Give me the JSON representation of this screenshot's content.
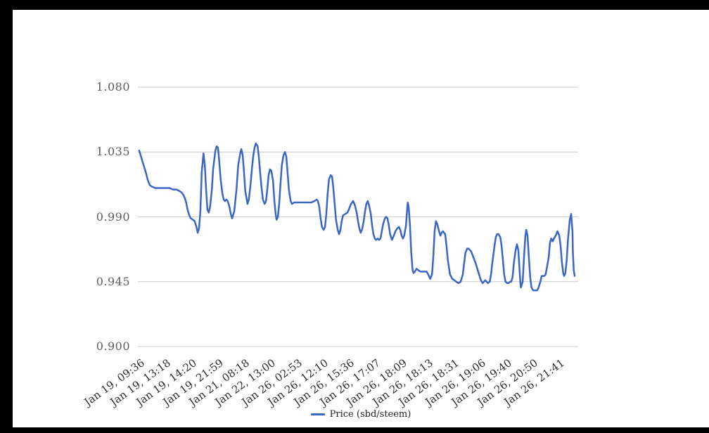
{
  "frame": {
    "color": "#000000"
  },
  "chart_data": {
    "type": "line",
    "title": "",
    "grid": true,
    "legend_position": "bottom",
    "x_axis": {
      "tick_labels": [
        "Jan 19, 09:36",
        "Jan 19, 13:18",
        "Jan 19, 14:20",
        "Jan 19, 21:59",
        "Jan 21, 08:18",
        "Jan 22, 13:00",
        "Jan 26, 02:53",
        "Jan 26, 12:10",
        "Jan 26, 15:36",
        "Jan 26, 17:07",
        "Jan 26, 18:09",
        "Jan 26, 18:13",
        "Jan 26, 18:31",
        "Jan 26, 19:06",
        "Jan 26, 19:40",
        "Jan 26, 20:50",
        "Jan 26, 21:41"
      ]
    },
    "y_axis": {
      "labels": [
        "1.080",
        "1.035",
        "0.990",
        "0.945",
        "0.900"
      ],
      "min": 0.9,
      "max": 1.08
    },
    "series": [
      {
        "name": "Price (sbd/steem)",
        "color": "#3a66c4",
        "points": [
          [
            0.003,
            1.036
          ],
          [
            0.008,
            1.031
          ],
          [
            0.013,
            1.026
          ],
          [
            0.018,
            1.021
          ],
          [
            0.022,
            1.016
          ],
          [
            0.027,
            1.012
          ],
          [
            0.032,
            1.011
          ],
          [
            0.04,
            1.01
          ],
          [
            0.048,
            1.01
          ],
          [
            0.056,
            1.01
          ],
          [
            0.064,
            1.01
          ],
          [
            0.072,
            1.01
          ],
          [
            0.08,
            1.009
          ],
          [
            0.088,
            1.009
          ],
          [
            0.094,
            1.008
          ],
          [
            0.099,
            1.007
          ],
          [
            0.104,
            1.005
          ],
          [
            0.109,
            1.001
          ],
          [
            0.113,
            0.995
          ],
          [
            0.117,
            0.991
          ],
          [
            0.12,
            0.989
          ],
          [
            0.125,
            0.988
          ],
          [
            0.129,
            0.987
          ],
          [
            0.133,
            0.983
          ],
          [
            0.136,
            0.979
          ],
          [
            0.139,
            0.982
          ],
          [
            0.142,
            0.994
          ],
          [
            0.145,
            1.021
          ],
          [
            0.149,
            1.034
          ],
          [
            0.152,
            1.026
          ],
          [
            0.155,
            1.009
          ],
          [
            0.158,
            0.995
          ],
          [
            0.161,
            0.993
          ],
          [
            0.164,
            0.997
          ],
          [
            0.168,
            1.009
          ],
          [
            0.171,
            1.023
          ],
          [
            0.176,
            1.036
          ],
          [
            0.179,
            1.039
          ],
          [
            0.182,
            1.038
          ],
          [
            0.185,
            1.028
          ],
          [
            0.188,
            1.016
          ],
          [
            0.192,
            1.006
          ],
          [
            0.195,
            1.002
          ],
          [
            0.198,
            1.001
          ],
          [
            0.201,
            1.002
          ],
          [
            0.204,
            1.001
          ],
          [
            0.208,
            0.997
          ],
          [
            0.211,
            0.992
          ],
          [
            0.214,
            0.989
          ],
          [
            0.219,
            0.994
          ],
          [
            0.224,
            1.009
          ],
          [
            0.228,
            1.026
          ],
          [
            0.233,
            1.035
          ],
          [
            0.235,
            1.037
          ],
          [
            0.238,
            1.033
          ],
          [
            0.241,
            1.021
          ],
          [
            0.244,
            1.008
          ],
          [
            0.248,
            1.001
          ],
          [
            0.249,
            0.999
          ],
          [
            0.252,
            1.002
          ],
          [
            0.256,
            1.013
          ],
          [
            0.259,
            1.023
          ],
          [
            0.262,
            1.032
          ],
          [
            0.265,
            1.038
          ],
          [
            0.268,
            1.041
          ],
          [
            0.272,
            1.039
          ],
          [
            0.275,
            1.031
          ],
          [
            0.278,
            1.02
          ],
          [
            0.281,
            1.01
          ],
          [
            0.284,
            1.002
          ],
          [
            0.288,
            0.999
          ],
          [
            0.291,
            1.001
          ],
          [
            0.294,
            1.009
          ],
          [
            0.297,
            1.019
          ],
          [
            0.3,
            1.023
          ],
          [
            0.303,
            1.022
          ],
          [
            0.307,
            1.015
          ],
          [
            0.31,
            1.001
          ],
          [
            0.313,
            0.992
          ],
          [
            0.315,
            0.988
          ],
          [
            0.318,
            0.99
          ],
          [
            0.321,
            0.999
          ],
          [
            0.324,
            1.013
          ],
          [
            0.327,
            1.026
          ],
          [
            0.331,
            1.033
          ],
          [
            0.334,
            1.035
          ],
          [
            0.337,
            1.032
          ],
          [
            0.34,
            1.021
          ],
          [
            0.343,
            1.009
          ],
          [
            0.347,
            1.001
          ],
          [
            0.35,
            0.999
          ],
          [
            0.355,
            1.0
          ],
          [
            0.363,
            1.0
          ],
          [
            0.371,
            1.0
          ],
          [
            0.379,
            1.0
          ],
          [
            0.387,
            1.0
          ],
          [
            0.394,
            1.0
          ],
          [
            0.401,
            1.001
          ],
          [
            0.406,
            1.002
          ],
          [
            0.409,
            1.001
          ],
          [
            0.412,
            0.997
          ],
          [
            0.415,
            0.989
          ],
          [
            0.418,
            0.983
          ],
          [
            0.422,
            0.981
          ],
          [
            0.425,
            0.983
          ],
          [
            0.428,
            0.992
          ],
          [
            0.431,
            1.006
          ],
          [
            0.434,
            1.016
          ],
          [
            0.438,
            1.019
          ],
          [
            0.441,
            1.018
          ],
          [
            0.444,
            1.01
          ],
          [
            0.447,
            0.999
          ],
          [
            0.45,
            0.988
          ],
          [
            0.454,
            0.981
          ],
          [
            0.457,
            0.978
          ],
          [
            0.46,
            0.981
          ],
          [
            0.463,
            0.987
          ],
          [
            0.466,
            0.991
          ],
          [
            0.471,
            0.992
          ],
          [
            0.476,
            0.993
          ],
          [
            0.479,
            0.995
          ],
          [
            0.484,
            0.999
          ],
          [
            0.489,
            1.001
          ],
          [
            0.493,
            0.998
          ],
          [
            0.497,
            0.993
          ],
          [
            0.5,
            0.987
          ],
          [
            0.503,
            0.982
          ],
          [
            0.506,
            0.979
          ],
          [
            0.509,
            0.981
          ],
          [
            0.513,
            0.987
          ],
          [
            0.516,
            0.994
          ],
          [
            0.519,
            0.999
          ],
          [
            0.522,
            1.001
          ],
          [
            0.525,
            0.998
          ],
          [
            0.529,
            0.992
          ],
          [
            0.532,
            0.984
          ],
          [
            0.535,
            0.978
          ],
          [
            0.538,
            0.975
          ],
          [
            0.541,
            0.974
          ],
          [
            0.545,
            0.975
          ],
          [
            0.548,
            0.974
          ],
          [
            0.551,
            0.975
          ],
          [
            0.554,
            0.98
          ],
          [
            0.557,
            0.985
          ],
          [
            0.561,
            0.989
          ],
          [
            0.564,
            0.99
          ],
          [
            0.567,
            0.989
          ],
          [
            0.57,
            0.984
          ],
          [
            0.573,
            0.978
          ],
          [
            0.577,
            0.974
          ],
          [
            0.58,
            0.976
          ],
          [
            0.585,
            0.98
          ],
          [
            0.589,
            0.982
          ],
          [
            0.593,
            0.983
          ],
          [
            0.596,
            0.981
          ],
          [
            0.599,
            0.977
          ],
          [
            0.602,
            0.975
          ],
          [
            0.605,
            0.977
          ],
          [
            0.609,
            0.984
          ],
          [
            0.612,
            0.997
          ],
          [
            0.613,
            1.0
          ],
          [
            0.615,
            0.997
          ],
          [
            0.618,
            0.984
          ],
          [
            0.621,
            0.965
          ],
          [
            0.624,
            0.953
          ],
          [
            0.626,
            0.951
          ],
          [
            0.629,
            0.952
          ],
          [
            0.633,
            0.954
          ],
          [
            0.637,
            0.953
          ],
          [
            0.642,
            0.952
          ],
          [
            0.647,
            0.952
          ],
          [
            0.652,
            0.952
          ],
          [
            0.656,
            0.952
          ],
          [
            0.661,
            0.949
          ],
          [
            0.664,
            0.947
          ],
          [
            0.668,
            0.95
          ],
          [
            0.671,
            0.962
          ],
          [
            0.674,
            0.98
          ],
          [
            0.677,
            0.987
          ],
          [
            0.68,
            0.985
          ],
          [
            0.684,
            0.98
          ],
          [
            0.687,
            0.977
          ],
          [
            0.69,
            0.979
          ],
          [
            0.693,
            0.98
          ],
          [
            0.698,
            0.978
          ],
          [
            0.701,
            0.97
          ],
          [
            0.704,
            0.96
          ],
          [
            0.709,
            0.95
          ],
          [
            0.714,
            0.947
          ],
          [
            0.719,
            0.946
          ],
          [
            0.723,
            0.945
          ],
          [
            0.728,
            0.944
          ],
          [
            0.733,
            0.945
          ],
          [
            0.738,
            0.95
          ],
          [
            0.741,
            0.958
          ],
          [
            0.744,
            0.965
          ],
          [
            0.748,
            0.968
          ],
          [
            0.751,
            0.968
          ],
          [
            0.754,
            0.967
          ],
          [
            0.757,
            0.966
          ],
          [
            0.762,
            0.962
          ],
          [
            0.767,
            0.958
          ],
          [
            0.771,
            0.954
          ],
          [
            0.776,
            0.949
          ],
          [
            0.779,
            0.946
          ],
          [
            0.783,
            0.944
          ],
          [
            0.786,
            0.945
          ],
          [
            0.789,
            0.946
          ],
          [
            0.792,
            0.945
          ],
          [
            0.795,
            0.944
          ],
          [
            0.799,
            0.945
          ],
          [
            0.802,
            0.95
          ],
          [
            0.805,
            0.958
          ],
          [
            0.81,
            0.97
          ],
          [
            0.813,
            0.976
          ],
          [
            0.816,
            0.978
          ],
          [
            0.819,
            0.978
          ],
          [
            0.823,
            0.976
          ],
          [
            0.826,
            0.97
          ],
          [
            0.829,
            0.96
          ],
          [
            0.832,
            0.95
          ],
          [
            0.835,
            0.945
          ],
          [
            0.839,
            0.944
          ],
          [
            0.842,
            0.944
          ],
          [
            0.845,
            0.945
          ],
          [
            0.848,
            0.945
          ],
          [
            0.851,
            0.948
          ],
          [
            0.854,
            0.958
          ],
          [
            0.858,
            0.967
          ],
          [
            0.861,
            0.971
          ],
          [
            0.864,
            0.967
          ],
          [
            0.867,
            0.953
          ],
          [
            0.869,
            0.943
          ],
          [
            0.87,
            0.941
          ],
          [
            0.874,
            0.945
          ],
          [
            0.877,
            0.962
          ],
          [
            0.88,
            0.977
          ],
          [
            0.882,
            0.981
          ],
          [
            0.885,
            0.977
          ],
          [
            0.888,
            0.962
          ],
          [
            0.891,
            0.948
          ],
          [
            0.894,
            0.941
          ],
          [
            0.898,
            0.939
          ],
          [
            0.901,
            0.939
          ],
          [
            0.904,
            0.939
          ],
          [
            0.907,
            0.939
          ],
          [
            0.91,
            0.941
          ],
          [
            0.914,
            0.945
          ],
          [
            0.917,
            0.949
          ],
          [
            0.92,
            0.949
          ],
          [
            0.923,
            0.949
          ],
          [
            0.926,
            0.95
          ],
          [
            0.929,
            0.955
          ],
          [
            0.933,
            0.962
          ],
          [
            0.936,
            0.972
          ],
          [
            0.939,
            0.975
          ],
          [
            0.942,
            0.973
          ],
          [
            0.945,
            0.975
          ],
          [
            0.949,
            0.977
          ],
          [
            0.953,
            0.98
          ],
          [
            0.957,
            0.977
          ],
          [
            0.96,
            0.97
          ],
          [
            0.963,
            0.959
          ],
          [
            0.966,
            0.951
          ],
          [
            0.968,
            0.949
          ],
          [
            0.971,
            0.951
          ],
          [
            0.974,
            0.96
          ],
          [
            0.977,
            0.975
          ],
          [
            0.981,
            0.988
          ],
          [
            0.984,
            0.992
          ],
          [
            0.987,
            0.98
          ],
          [
            0.988,
            0.965
          ],
          [
            0.99,
            0.953
          ],
          [
            0.992,
            0.949
          ]
        ]
      }
    ]
  }
}
